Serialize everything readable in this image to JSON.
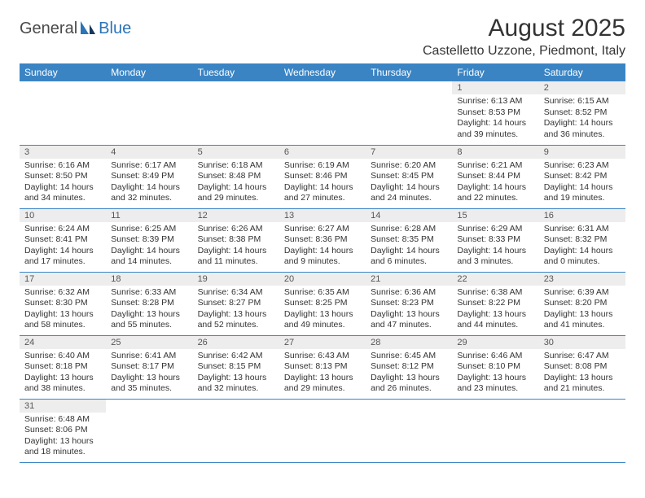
{
  "logo": {
    "part1": "General",
    "part2": "Blue"
  },
  "title": "August 2025",
  "location": "Castelletto Uzzone, Piedmont, Italy",
  "colors": {
    "header_bg": "#3a84c4",
    "header_text": "#ffffff",
    "daynum_bg": "#ededed",
    "rule": "#3a84c4",
    "logo_accent": "#2b74b8"
  },
  "weekdays": [
    "Sunday",
    "Monday",
    "Tuesday",
    "Wednesday",
    "Thursday",
    "Friday",
    "Saturday"
  ],
  "weeks": [
    [
      null,
      null,
      null,
      null,
      null,
      {
        "n": "1",
        "sunrise": "6:13 AM",
        "sunset": "8:53 PM",
        "dl": "14 hours and 39 minutes."
      },
      {
        "n": "2",
        "sunrise": "6:15 AM",
        "sunset": "8:52 PM",
        "dl": "14 hours and 36 minutes."
      }
    ],
    [
      {
        "n": "3",
        "sunrise": "6:16 AM",
        "sunset": "8:50 PM",
        "dl": "14 hours and 34 minutes."
      },
      {
        "n": "4",
        "sunrise": "6:17 AM",
        "sunset": "8:49 PM",
        "dl": "14 hours and 32 minutes."
      },
      {
        "n": "5",
        "sunrise": "6:18 AM",
        "sunset": "8:48 PM",
        "dl": "14 hours and 29 minutes."
      },
      {
        "n": "6",
        "sunrise": "6:19 AM",
        "sunset": "8:46 PM",
        "dl": "14 hours and 27 minutes."
      },
      {
        "n": "7",
        "sunrise": "6:20 AM",
        "sunset": "8:45 PM",
        "dl": "14 hours and 24 minutes."
      },
      {
        "n": "8",
        "sunrise": "6:21 AM",
        "sunset": "8:44 PM",
        "dl": "14 hours and 22 minutes."
      },
      {
        "n": "9",
        "sunrise": "6:23 AM",
        "sunset": "8:42 PM",
        "dl": "14 hours and 19 minutes."
      }
    ],
    [
      {
        "n": "10",
        "sunrise": "6:24 AM",
        "sunset": "8:41 PM",
        "dl": "14 hours and 17 minutes."
      },
      {
        "n": "11",
        "sunrise": "6:25 AM",
        "sunset": "8:39 PM",
        "dl": "14 hours and 14 minutes."
      },
      {
        "n": "12",
        "sunrise": "6:26 AM",
        "sunset": "8:38 PM",
        "dl": "14 hours and 11 minutes."
      },
      {
        "n": "13",
        "sunrise": "6:27 AM",
        "sunset": "8:36 PM",
        "dl": "14 hours and 9 minutes."
      },
      {
        "n": "14",
        "sunrise": "6:28 AM",
        "sunset": "8:35 PM",
        "dl": "14 hours and 6 minutes."
      },
      {
        "n": "15",
        "sunrise": "6:29 AM",
        "sunset": "8:33 PM",
        "dl": "14 hours and 3 minutes."
      },
      {
        "n": "16",
        "sunrise": "6:31 AM",
        "sunset": "8:32 PM",
        "dl": "14 hours and 0 minutes."
      }
    ],
    [
      {
        "n": "17",
        "sunrise": "6:32 AM",
        "sunset": "8:30 PM",
        "dl": "13 hours and 58 minutes."
      },
      {
        "n": "18",
        "sunrise": "6:33 AM",
        "sunset": "8:28 PM",
        "dl": "13 hours and 55 minutes."
      },
      {
        "n": "19",
        "sunrise": "6:34 AM",
        "sunset": "8:27 PM",
        "dl": "13 hours and 52 minutes."
      },
      {
        "n": "20",
        "sunrise": "6:35 AM",
        "sunset": "8:25 PM",
        "dl": "13 hours and 49 minutes."
      },
      {
        "n": "21",
        "sunrise": "6:36 AM",
        "sunset": "8:23 PM",
        "dl": "13 hours and 47 minutes."
      },
      {
        "n": "22",
        "sunrise": "6:38 AM",
        "sunset": "8:22 PM",
        "dl": "13 hours and 44 minutes."
      },
      {
        "n": "23",
        "sunrise": "6:39 AM",
        "sunset": "8:20 PM",
        "dl": "13 hours and 41 minutes."
      }
    ],
    [
      {
        "n": "24",
        "sunrise": "6:40 AM",
        "sunset": "8:18 PM",
        "dl": "13 hours and 38 minutes."
      },
      {
        "n": "25",
        "sunrise": "6:41 AM",
        "sunset": "8:17 PM",
        "dl": "13 hours and 35 minutes."
      },
      {
        "n": "26",
        "sunrise": "6:42 AM",
        "sunset": "8:15 PM",
        "dl": "13 hours and 32 minutes."
      },
      {
        "n": "27",
        "sunrise": "6:43 AM",
        "sunset": "8:13 PM",
        "dl": "13 hours and 29 minutes."
      },
      {
        "n": "28",
        "sunrise": "6:45 AM",
        "sunset": "8:12 PM",
        "dl": "13 hours and 26 minutes."
      },
      {
        "n": "29",
        "sunrise": "6:46 AM",
        "sunset": "8:10 PM",
        "dl": "13 hours and 23 minutes."
      },
      {
        "n": "30",
        "sunrise": "6:47 AM",
        "sunset": "8:08 PM",
        "dl": "13 hours and 21 minutes."
      }
    ],
    [
      {
        "n": "31",
        "sunrise": "6:48 AM",
        "sunset": "8:06 PM",
        "dl": "13 hours and 18 minutes."
      },
      null,
      null,
      null,
      null,
      null,
      null
    ]
  ],
  "labels": {
    "sunrise": "Sunrise: ",
    "sunset": "Sunset: ",
    "daylight": "Daylight: "
  }
}
